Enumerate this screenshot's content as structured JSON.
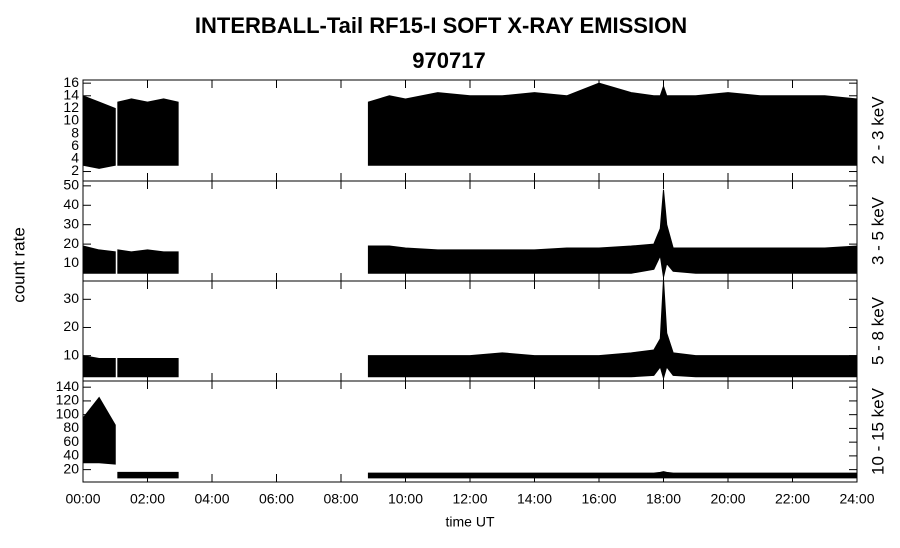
{
  "title": "INTERBALL-Tail RF15-I SOFT X-RAY EMISSION",
  "subtitle": "970717",
  "ylabel": "count rate",
  "xlabel": "time UT",
  "chart_data": [
    {
      "type": "range",
      "label": "2 - 3 keV",
      "xlim": [
        0,
        24
      ],
      "ylim": [
        0.5,
        16.5
      ],
      "yticks": [
        2,
        4,
        6,
        8,
        10,
        12,
        14,
        16
      ],
      "color": "#000000",
      "x": [
        0,
        0.5,
        1.0,
        1.04,
        1.08,
        1.5,
        2.0,
        2.5,
        2.95,
        5.9,
        8.85,
        9.5,
        10,
        11,
        12,
        13,
        14,
        15,
        16,
        17,
        17.7,
        17.9,
        18.0,
        18.1,
        18.3,
        19,
        20,
        21,
        22,
        23,
        24
      ],
      "low": [
        3,
        2.5,
        3,
        null,
        3,
        3,
        3,
        3,
        3,
        null,
        3,
        3,
        3,
        3,
        3,
        3,
        3,
        3,
        3,
        3,
        3,
        3,
        3,
        3,
        3,
        3,
        3,
        3,
        3,
        3,
        3
      ],
      "high": [
        14,
        13,
        12,
        null,
        13,
        13.5,
        13,
        13.5,
        13,
        null,
        13,
        14,
        13.5,
        14.5,
        14,
        14,
        14.5,
        14,
        16,
        14.5,
        14,
        14,
        15.5,
        14,
        14,
        14,
        14.5,
        14,
        14,
        14,
        13.5
      ]
    },
    {
      "type": "range",
      "label": "3 - 5 keV",
      "xlim": [
        0,
        24
      ],
      "ylim": [
        1,
        52.5
      ],
      "yticks": [
        10,
        20,
        30,
        40,
        50
      ],
      "color": "#000000",
      "x": [
        0,
        0.5,
        1.0,
        1.04,
        1.08,
        1.5,
        2.0,
        2.5,
        2.95,
        5.9,
        8.85,
        9.5,
        10,
        11,
        12,
        13,
        14,
        15,
        16,
        17,
        17.7,
        17.9,
        18.0,
        18.1,
        18.3,
        19,
        20,
        21,
        22,
        23,
        24
      ],
      "low": [
        5,
        5,
        5,
        null,
        5,
        5,
        5,
        5,
        5,
        null,
        5,
        5,
        5,
        5,
        5,
        5,
        5,
        5,
        5,
        5,
        7,
        14,
        3,
        10,
        6,
        5,
        5,
        5,
        5,
        5,
        5
      ],
      "high": [
        19,
        17,
        16,
        null,
        17,
        16,
        17,
        16,
        16,
        null,
        19,
        19,
        18,
        17,
        17,
        17,
        17,
        18,
        18,
        19,
        20,
        28,
        48,
        30,
        18,
        18,
        18,
        18,
        18,
        18,
        19
      ]
    },
    {
      "type": "range",
      "label": "5 - 8 keV",
      "xlim": [
        0,
        24
      ],
      "ylim": [
        1,
        36.5
      ],
      "yticks": [
        10,
        20,
        30
      ],
      "color": "#000000",
      "x": [
        0,
        0.5,
        1.0,
        1.04,
        1.08,
        1.5,
        2.0,
        2.5,
        2.95,
        5.9,
        8.85,
        9.5,
        10,
        11,
        12,
        13,
        14,
        15,
        16,
        17,
        17.7,
        17.9,
        18.0,
        18.1,
        18.3,
        19,
        20,
        21,
        22,
        23,
        24
      ],
      "low": [
        2.5,
        2.5,
        2.5,
        null,
        2.5,
        2.5,
        2.5,
        2.5,
        2.5,
        null,
        2.5,
        2.5,
        2.5,
        2.5,
        2.5,
        2.5,
        2.5,
        2.5,
        2.5,
        2.5,
        3,
        6,
        2,
        6,
        3,
        2.5,
        2.5,
        2.5,
        2.5,
        2.5,
        2.5
      ],
      "high": [
        10,
        9,
        9,
        null,
        9,
        9,
        9,
        9,
        9,
        null,
        10,
        10,
        10,
        10,
        10,
        11,
        10,
        10,
        10,
        11,
        12,
        16,
        37,
        18,
        11,
        10,
        10,
        10,
        10,
        10,
        10
      ]
    },
    {
      "type": "range",
      "label": "10 - 15 keV",
      "xlim": [
        0,
        24
      ],
      "ylim": [
        2,
        149
      ],
      "yticks": [
        20,
        40,
        60,
        80,
        100,
        120,
        140
      ],
      "color": "#000000",
      "xticks": [
        {
          "value": 0,
          "label": "00:00"
        },
        {
          "value": 2,
          "label": "02:00"
        },
        {
          "value": 4,
          "label": "04:00"
        },
        {
          "value": 6,
          "label": "06:00"
        },
        {
          "value": 8,
          "label": "08:00"
        },
        {
          "value": 10,
          "label": "10:00"
        },
        {
          "value": 12,
          "label": "12:00"
        },
        {
          "value": 14,
          "label": "14:00"
        },
        {
          "value": 16,
          "label": "16:00"
        },
        {
          "value": 18,
          "label": "18:00"
        },
        {
          "value": 20,
          "label": "20:00"
        },
        {
          "value": 22,
          "label": "22:00"
        },
        {
          "value": 24,
          "label": "24:00"
        }
      ],
      "x": [
        0,
        0.5,
        1.0,
        1.04,
        1.08,
        1.5,
        2.0,
        2.5,
        2.95,
        5.9,
        8.85,
        9.5,
        10,
        11,
        12,
        13,
        14,
        15,
        16,
        17,
        17.7,
        17.9,
        18.0,
        18.1,
        18.3,
        19,
        20,
        21,
        22,
        23,
        24
      ],
      "low": [
        30,
        30,
        28,
        null,
        8,
        8,
        8,
        8,
        8,
        null,
        8,
        8,
        8,
        8,
        8,
        8,
        8,
        8,
        8,
        8,
        8,
        8,
        8,
        8,
        8,
        8,
        8,
        8,
        8,
        8,
        8
      ],
      "high": [
        95,
        125,
        85,
        null,
        16,
        16,
        16,
        16,
        16,
        null,
        15,
        15,
        15,
        15,
        15,
        15,
        15,
        15,
        15,
        15,
        15,
        16,
        17,
        16,
        15,
        15,
        15,
        15,
        15,
        15,
        15
      ]
    }
  ]
}
